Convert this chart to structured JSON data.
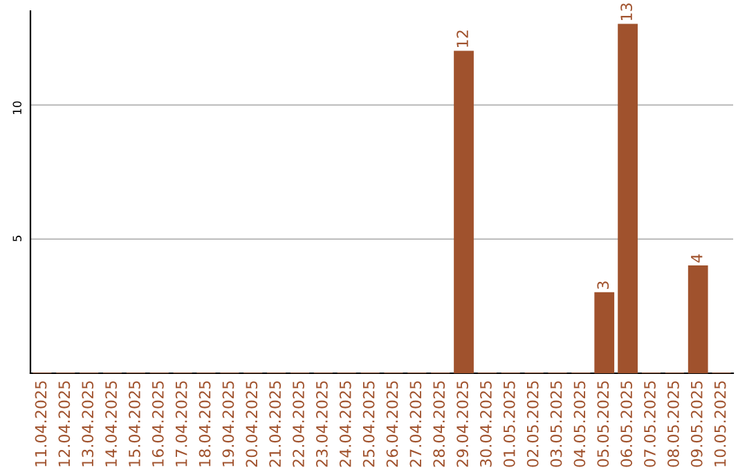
{
  "chart_data": {
    "type": "bar",
    "categories": [
      "11.04.2025",
      "12.04.2025",
      "13.04.2025",
      "14.04.2025",
      "15.04.2025",
      "16.04.2025",
      "17.04.2025",
      "18.04.2025",
      "19.04.2025",
      "20.04.2025",
      "21.04.2025",
      "22.04.2025",
      "23.04.2025",
      "24.04.2025",
      "25.04.2025",
      "26.04.2025",
      "27.04.2025",
      "28.04.2025",
      "29.04.2025",
      "30.04.2025",
      "01.05.2025",
      "02.05.2025",
      "03.05.2025",
      "04.05.2025",
      "05.05.2025",
      "06.05.2025",
      "07.05.2025",
      "08.05.2025",
      "09.05.2025",
      "10.05.2025"
    ],
    "values": [
      0,
      0,
      0,
      0,
      0,
      0,
      0,
      0,
      0,
      0,
      0,
      0,
      0,
      0,
      0,
      0,
      0,
      0,
      12,
      0,
      0,
      0,
      0,
      0,
      3,
      13,
      0,
      0,
      4,
      0
    ],
    "value_labels": [
      null,
      null,
      null,
      null,
      null,
      null,
      null,
      null,
      null,
      null,
      null,
      null,
      null,
      null,
      null,
      null,
      null,
      null,
      "12",
      null,
      null,
      null,
      null,
      null,
      "3",
      "13",
      null,
      null,
      "4",
      null
    ],
    "color": "#a0522d",
    "ylim": [
      0,
      13.5
    ],
    "yticks": [
      5,
      10
    ],
    "grid": "y",
    "legend": false
  }
}
